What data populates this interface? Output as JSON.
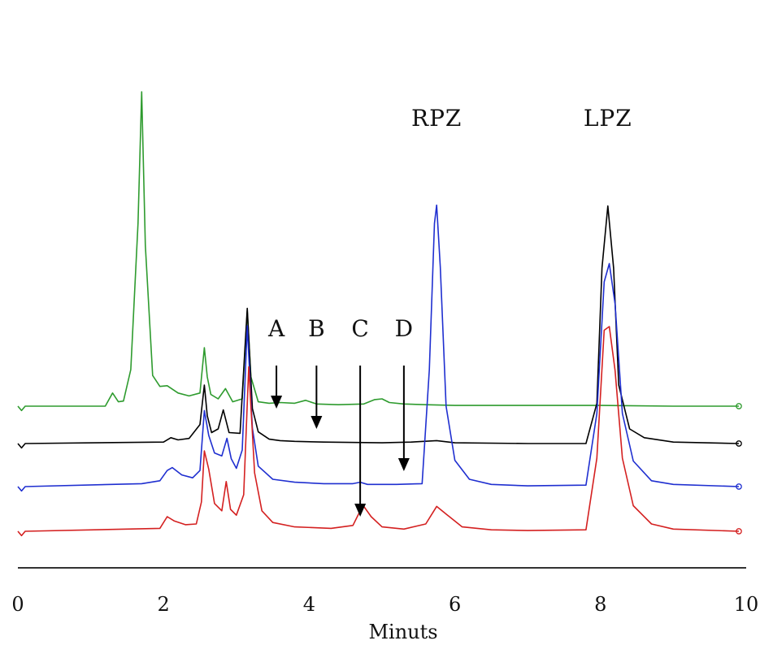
{
  "chart_data": {
    "type": "line",
    "xlabel": "Minuts",
    "xlim": [
      0,
      10
    ],
    "x_ticks": [
      "0",
      "2",
      "4",
      "6",
      "8",
      "10"
    ],
    "grid": false,
    "legend": "none",
    "peak_labels": [
      {
        "text": "RPZ",
        "x": 5.75
      },
      {
        "text": "LPZ",
        "x": 8.1
      }
    ],
    "markers": [
      {
        "text": "A",
        "x": 3.55,
        "series": "green"
      },
      {
        "text": "B",
        "x": 4.1,
        "series": "black"
      },
      {
        "text": "C",
        "x": 4.7,
        "series": "red"
      },
      {
        "text": "D",
        "x": 5.3,
        "series": "blue"
      }
    ],
    "series": [
      {
        "color": "#2e9b2e",
        "x": [
          0.0,
          0.05,
          0.1,
          1.2,
          1.3,
          1.38,
          1.45,
          1.55,
          1.65,
          1.7,
          1.75,
          1.85,
          1.95,
          2.05,
          2.2,
          2.35,
          2.5,
          2.56,
          2.6,
          2.65,
          2.75,
          2.85,
          2.95,
          3.08,
          3.15,
          3.2,
          3.3,
          3.45,
          3.6,
          3.8,
          3.95,
          4.1,
          4.4,
          4.75,
          4.9,
          5.0,
          5.1,
          5.3,
          5.6,
          6.0,
          7.0,
          8.0,
          9.0,
          9.9
        ],
        "y": [
          0.0,
          -0.6,
          0.0,
          0.0,
          1.8,
          0.6,
          0.7,
          5.0,
          25.0,
          43.0,
          22.0,
          4.2,
          2.7,
          2.8,
          1.8,
          1.4,
          1.8,
          8.0,
          4.0,
          1.6,
          1.0,
          2.4,
          0.6,
          1.0,
          13.0,
          4.0,
          0.6,
          0.4,
          0.5,
          0.4,
          0.8,
          0.3,
          0.2,
          0.3,
          0.9,
          1.0,
          0.5,
          0.3,
          0.2,
          0.1,
          0.1,
          0.1,
          0.0,
          0.0
        ]
      },
      {
        "color": "#000000",
        "x": [
          0.0,
          0.05,
          0.1,
          2.0,
          2.1,
          2.2,
          2.35,
          2.5,
          2.56,
          2.6,
          2.66,
          2.75,
          2.82,
          2.9,
          3.05,
          3.15,
          3.22,
          3.3,
          3.45,
          3.6,
          3.8,
          4.2,
          5.0,
          5.4,
          5.75,
          6.0,
          7.0,
          7.8,
          7.95,
          8.02,
          8.1,
          8.18,
          8.25,
          8.4,
          8.6,
          9.0,
          9.9
        ],
        "y": [
          0.0,
          -0.6,
          0.0,
          0.2,
          0.8,
          0.5,
          0.7,
          2.6,
          8.0,
          3.8,
          1.5,
          2.0,
          4.6,
          1.5,
          1.4,
          18.5,
          4.8,
          1.6,
          0.6,
          0.4,
          0.3,
          0.2,
          0.1,
          0.2,
          0.4,
          0.1,
          0.0,
          0.0,
          5.5,
          24.0,
          32.5,
          24.0,
          8.0,
          2.0,
          0.8,
          0.2,
          0.0
        ]
      },
      {
        "color": "#1f2fd0",
        "x": [
          0.0,
          0.05,
          0.1,
          1.7,
          1.95,
          2.05,
          2.12,
          2.25,
          2.4,
          2.5,
          2.56,
          2.62,
          2.7,
          2.8,
          2.87,
          2.93,
          3.0,
          3.08,
          3.15,
          3.22,
          3.3,
          3.5,
          3.8,
          4.2,
          4.6,
          4.7,
          4.8,
          5.2,
          5.55,
          5.65,
          5.72,
          5.75,
          5.8,
          5.88,
          6.0,
          6.2,
          6.5,
          7.0,
          7.8,
          7.95,
          8.05,
          8.12,
          8.2,
          8.3,
          8.45,
          8.7,
          9.0,
          9.9
        ],
        "y": [
          0.0,
          -0.6,
          0.0,
          0.4,
          0.8,
          2.2,
          2.6,
          1.6,
          1.2,
          2.2,
          10.4,
          7.0,
          4.6,
          4.2,
          6.6,
          3.8,
          2.5,
          5.0,
          22.0,
          8.0,
          2.8,
          1.0,
          0.6,
          0.4,
          0.4,
          0.6,
          0.3,
          0.3,
          0.4,
          16.0,
          36.0,
          38.5,
          30.0,
          11.0,
          3.6,
          1.0,
          0.3,
          0.1,
          0.2,
          10.0,
          28.0,
          30.5,
          25.0,
          10.0,
          3.5,
          0.8,
          0.3,
          0.0
        ]
      },
      {
        "color": "#d42020",
        "x": [
          0.0,
          0.05,
          0.1,
          1.95,
          2.05,
          2.15,
          2.3,
          2.45,
          2.52,
          2.56,
          2.62,
          2.7,
          2.8,
          2.86,
          2.92,
          3.0,
          3.1,
          3.17,
          3.25,
          3.35,
          3.5,
          3.8,
          4.3,
          4.6,
          4.7,
          4.75,
          4.85,
          5.0,
          5.3,
          5.6,
          5.75,
          5.9,
          6.1,
          6.5,
          7.0,
          7.8,
          7.95,
          8.05,
          8.12,
          8.2,
          8.3,
          8.45,
          8.7,
          9.0,
          9.9
        ],
        "y": [
          0.0,
          -0.6,
          0.0,
          0.4,
          2.0,
          1.4,
          0.9,
          1.0,
          4.0,
          11.0,
          8.5,
          3.8,
          2.8,
          6.8,
          3.0,
          2.2,
          5.0,
          22.5,
          8.0,
          2.8,
          1.2,
          0.6,
          0.4,
          0.8,
          2.8,
          3.4,
          2.0,
          0.6,
          0.3,
          1.0,
          3.4,
          2.2,
          0.6,
          0.2,
          0.1,
          0.2,
          10.0,
          27.5,
          28.0,
          22.0,
          10.0,
          3.5,
          1.0,
          0.3,
          0.0
        ]
      }
    ]
  }
}
